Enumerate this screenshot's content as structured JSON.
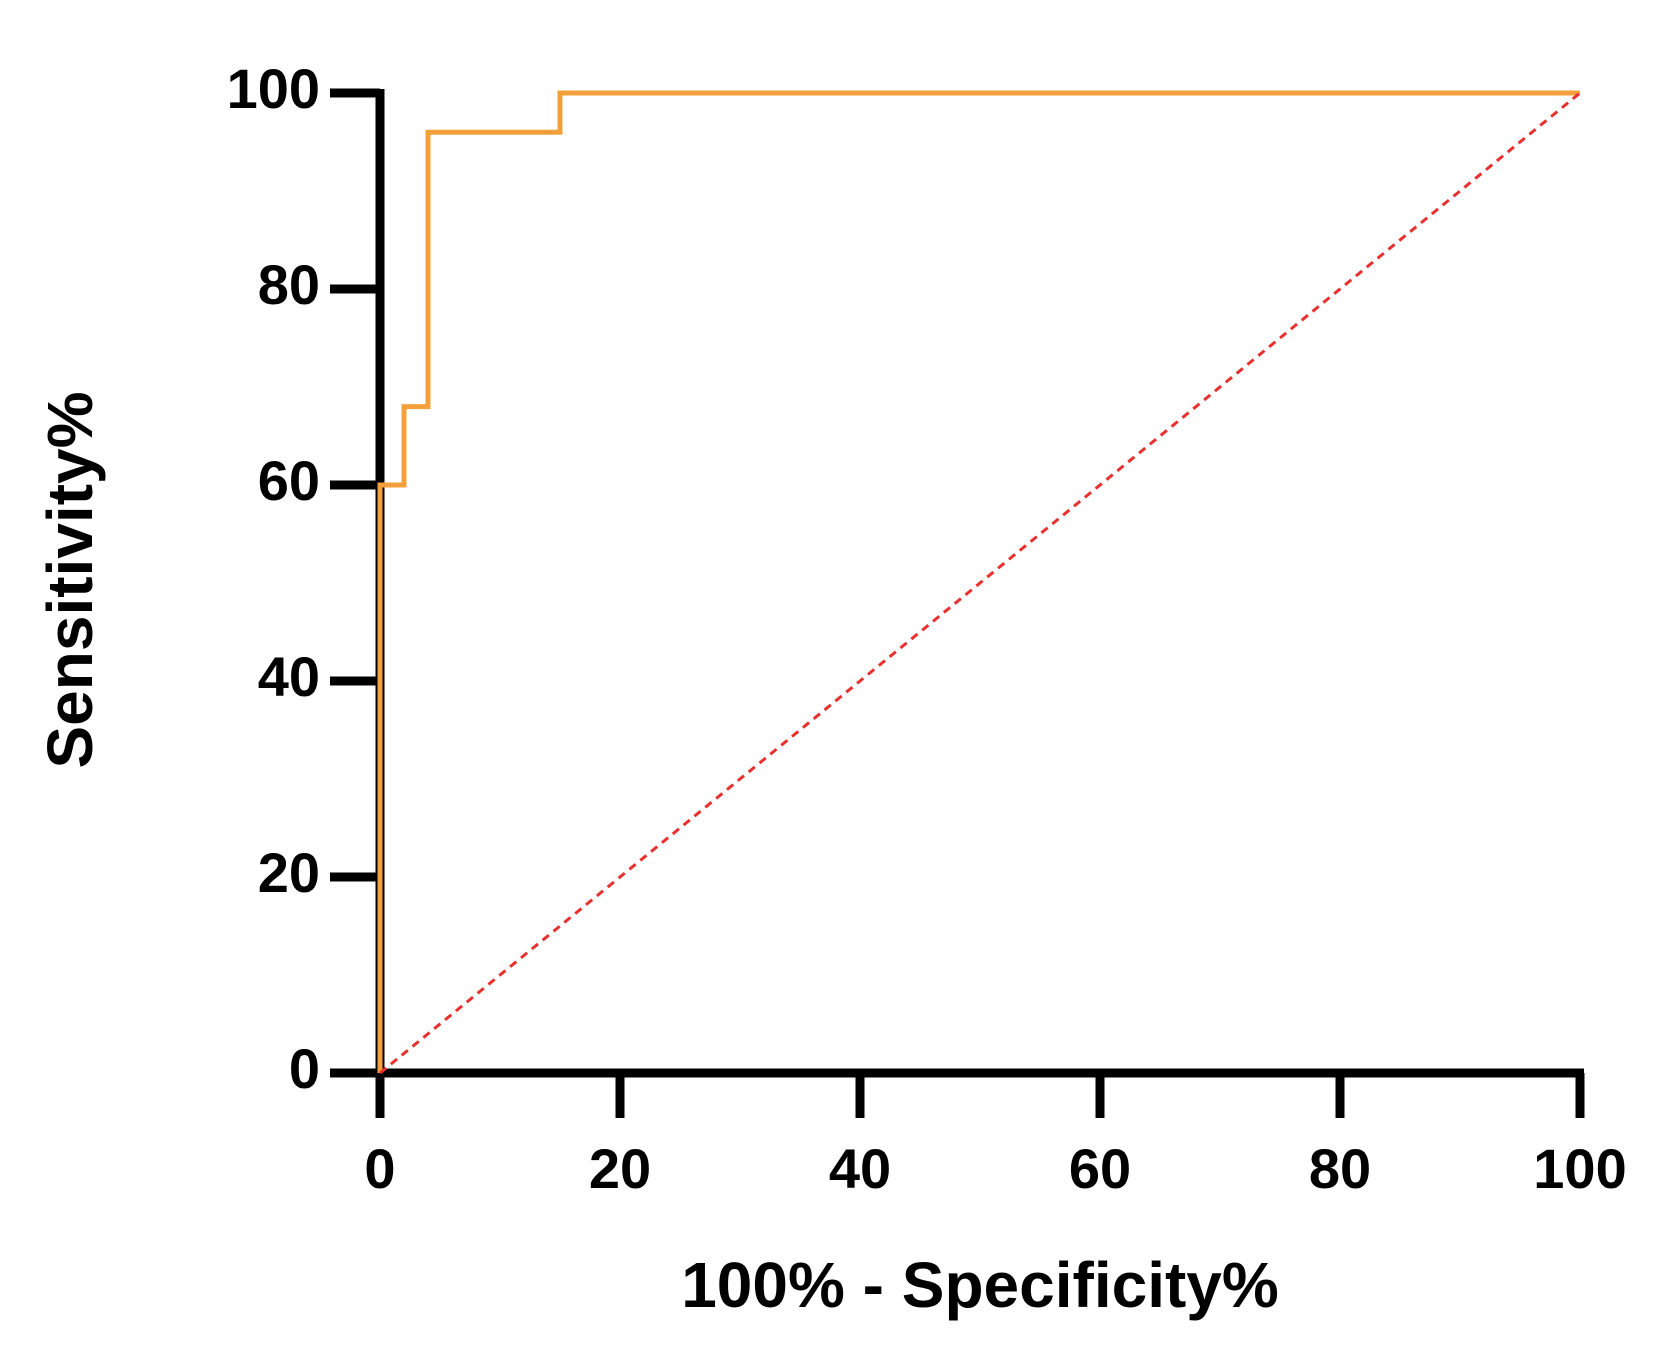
{
  "chart_data": {
    "type": "line",
    "xlabel": "100% - Specificity%",
    "ylabel": "Sensitivity%",
    "xlim": [
      0,
      100
    ],
    "ylim": [
      0,
      100
    ],
    "xticks": [
      0,
      20,
      40,
      60,
      80,
      100
    ],
    "yticks": [
      0,
      20,
      40,
      60,
      80,
      100
    ],
    "grid": false,
    "series": [
      {
        "color": "#f4a03a",
        "style": "solid",
        "step": true,
        "x": [
          0,
          0,
          2,
          2,
          4,
          4,
          15,
          15,
          100
        ],
        "values": [
          0,
          60,
          60,
          68,
          68,
          96,
          96,
          100,
          100
        ]
      },
      {
        "color": "#e8302e",
        "style": "dashed",
        "x": [
          0,
          100
        ],
        "values": [
          0,
          100
        ]
      }
    ]
  }
}
